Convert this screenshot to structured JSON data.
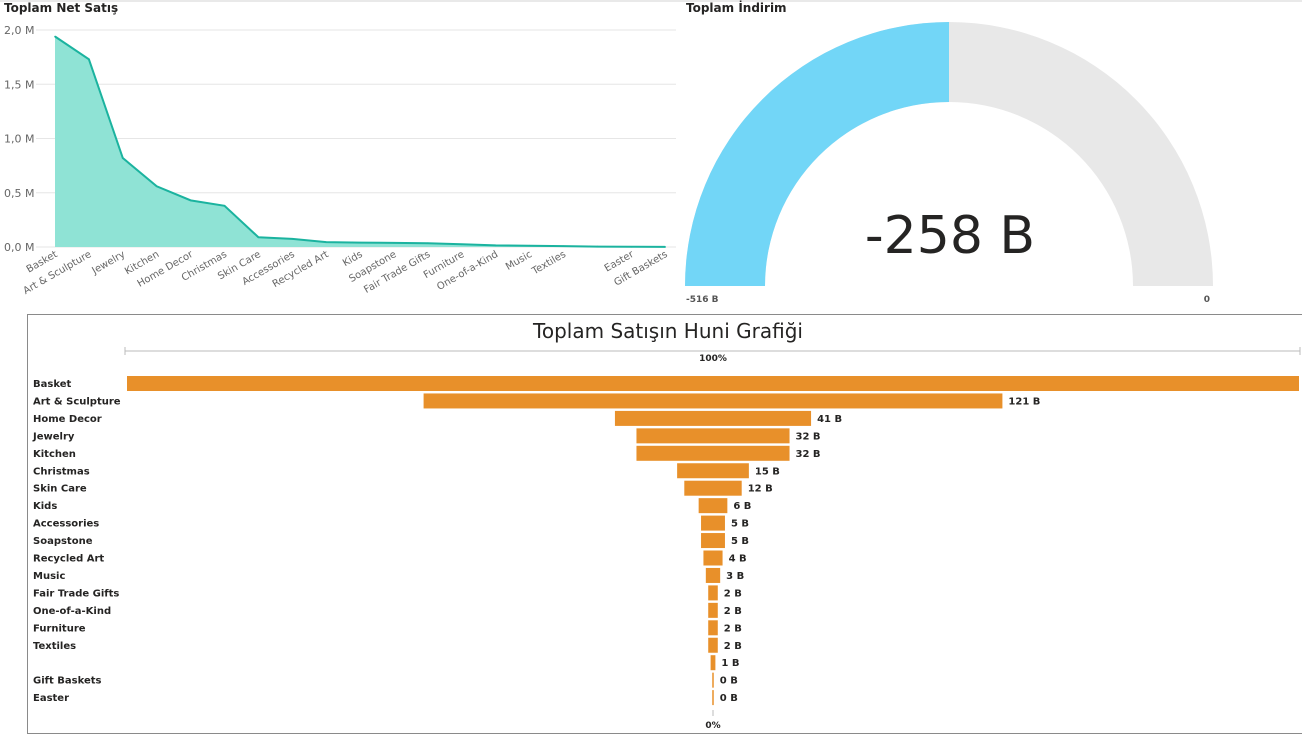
{
  "colors": {
    "area_fill": "#8fe3d5",
    "area_line": "#1bb39f",
    "gauge_fill": "#72d6f7",
    "gauge_track": "#e8e8e8",
    "funnel_bar": "#e8902a",
    "text": "#252423",
    "axis_text": "#666666",
    "grid": "#e6e6e6"
  },
  "area_chart": {
    "title": "Toplam Net Satış"
  },
  "gauge": {
    "title": "Toplam İndirim",
    "value_label": "-258 B",
    "min_label": "-516 B",
    "max_label": "0"
  },
  "funnel": {
    "title": "Toplam Satışın Huni Grafiği",
    "top_percent_label": "100%",
    "bottom_percent_label": "0%"
  },
  "chart_data": [
    {
      "type": "area",
      "title": "Toplam Net Satış",
      "xlabel": "",
      "ylabel": "",
      "categories": [
        "Basket",
        "Art & Sculpture",
        "Jewelry",
        "Kitchen",
        "Home Decor",
        "Christmas",
        "Skin Care",
        "Accessories",
        "Recycled Art",
        "Kids",
        "Soapstone",
        "Fair Trade Gifts",
        "Furniture",
        "One-of-a-Kind",
        "Music",
        "Textiles",
        "",
        "Easter",
        "Gift Baskets"
      ],
      "values": [
        1.94,
        1.73,
        0.82,
        0.56,
        0.43,
        0.38,
        0.09,
        0.075,
        0.045,
        0.04,
        0.038,
        0.035,
        0.025,
        0.015,
        0.012,
        0.008,
        0.004,
        0.002,
        0.001
      ],
      "unit": "M",
      "yticks": [
        "0,0 M",
        "0,5 M",
        "1,0 M",
        "1,5 M",
        "2,0 M"
      ],
      "ylim": [
        0,
        2
      ],
      "grid": true
    },
    {
      "type": "gauge",
      "title": "Toplam İndirim",
      "value": -258,
      "min": -516,
      "max": 0,
      "unit": "B"
    },
    {
      "type": "bar",
      "orientation": "funnel",
      "title": "Toplam Satışın Huni Grafiği",
      "categories": [
        "Basket",
        "Art & Sculpture",
        "Home Decor",
        "Jewelry",
        "Kitchen",
        "Christmas",
        "Skin Care",
        "Kids",
        "Accessories",
        "Soapstone",
        "Recycled Art",
        "Music",
        "Fair Trade Gifts",
        "One-of-a-Kind",
        "Furniture",
        "Textiles",
        "",
        "Gift Baskets",
        "Easter"
      ],
      "values": [
        245,
        121,
        41,
        32,
        32,
        15,
        12,
        6,
        5,
        5,
        4,
        3,
        2,
        2,
        2,
        2,
        1,
        0.3,
        0.1
      ],
      "value_labels": [
        "",
        "121 B",
        "41 B",
        "32 B",
        "32 B",
        "15 B",
        "12 B",
        "6 B",
        "5 B",
        "5 B",
        "4 B",
        "3 B",
        "2 B",
        "2 B",
        "2 B",
        "2 B",
        "1 B",
        "0 B",
        "0 B"
      ],
      "unit": "B"
    }
  ]
}
